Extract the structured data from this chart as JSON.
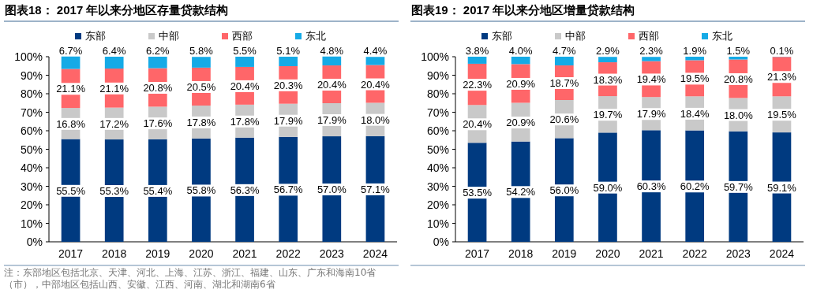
{
  "chart_data": [
    {
      "type": "bar",
      "title": "图表18： 2017 年以来分地区存量贷款结构",
      "categories": [
        "2017",
        "2018",
        "2019",
        "2020",
        "2021",
        "2022",
        "2023",
        "2024"
      ],
      "stacked": true,
      "legend": "top",
      "grid": false,
      "series": [
        {
          "name": "东部",
          "color": "#003a80",
          "values": [
            55.5,
            55.3,
            55.4,
            55.8,
            56.3,
            56.7,
            57.0,
            57.1
          ],
          "value_labels": [
            "55.5%",
            "55.3%",
            "55.4%",
            "55.8%",
            "56.3%",
            "56.7%",
            "57.0%",
            "57.1%"
          ]
        },
        {
          "name": "中部",
          "color": "#c9c9c9",
          "values": [
            16.8,
            17.2,
            17.6,
            17.8,
            17.8,
            17.9,
            17.9,
            18.0
          ],
          "value_labels": [
            "16.8%",
            "17.2%",
            "17.6%",
            "17.8%",
            "17.8%",
            "17.9%",
            "17.9%",
            "18.0%"
          ]
        },
        {
          "name": "西部",
          "color": "#ff6669",
          "values": [
            21.1,
            21.1,
            20.8,
            20.5,
            20.4,
            20.3,
            20.4,
            20.4
          ],
          "value_labels": [
            "21.1%",
            "21.1%",
            "20.8%",
            "20.5%",
            "20.4%",
            "20.3%",
            "20.4%",
            "20.4%"
          ]
        },
        {
          "name": "东北",
          "color": "#15aae6",
          "values": [
            6.7,
            6.4,
            6.2,
            5.8,
            5.5,
            5.1,
            4.8,
            4.4
          ],
          "value_labels": [
            "6.7%",
            "6.4%",
            "6.2%",
            "5.8%",
            "5.5%",
            "5.1%",
            "4.8%",
            "4.4%"
          ]
        }
      ],
      "ylim": [
        0,
        100
      ],
      "yticks": [
        {
          "value": 0,
          "label": "0%"
        },
        {
          "value": 10,
          "label": "10%"
        },
        {
          "value": 20,
          "label": "20%"
        },
        {
          "value": 30,
          "label": "30%"
        },
        {
          "value": 40,
          "label": "40%"
        },
        {
          "value": 50,
          "label": "50%"
        },
        {
          "value": 60,
          "label": "60%"
        },
        {
          "value": 70,
          "label": "70%"
        },
        {
          "value": 80,
          "label": "80%"
        },
        {
          "value": 90,
          "label": "90%"
        },
        {
          "value": 100,
          "label": "100%"
        }
      ],
      "annotations": [
        "注：东部地区包括北京、天津、河北、上海、江苏、浙江、福建、山东、广东和海南10省（市），中部地区包括山西、安徽、江西、河南、湖北和湖南6省"
      ]
    },
    {
      "type": "bar",
      "title": "图表19： 2017 年以来分地区增量贷款结构",
      "categories": [
        "2017",
        "2018",
        "2019",
        "2020",
        "2021",
        "2022",
        "2023",
        "2024"
      ],
      "stacked": true,
      "legend": "top",
      "grid": false,
      "series": [
        {
          "name": "东部",
          "color": "#003a80",
          "values": [
            53.5,
            54.2,
            56.0,
            59.0,
            60.3,
            60.2,
            59.7,
            59.1
          ],
          "value_labels": [
            "53.5%",
            "54.2%",
            "56.0%",
            "59.0%",
            "60.3%",
            "60.2%",
            "59.7%",
            "59.1%"
          ]
        },
        {
          "name": "中部",
          "color": "#c9c9c9",
          "values": [
            20.4,
            20.9,
            20.6,
            19.7,
            17.9,
            18.4,
            18.0,
            19.5
          ],
          "value_labels": [
            "20.4%",
            "20.9%",
            "20.6%",
            "19.7%",
            "17.9%",
            "18.4%",
            "18.0%",
            "19.5%"
          ]
        },
        {
          "name": "西部",
          "color": "#ff6669",
          "values": [
            22.3,
            20.9,
            18.7,
            18.3,
            19.4,
            19.5,
            20.8,
            21.3
          ],
          "value_labels": [
            "22.3%",
            "20.9%",
            "18.7%",
            "18.3%",
            "19.4%",
            "19.5%",
            "20.8%",
            "21.3%"
          ]
        },
        {
          "name": "东北",
          "color": "#15aae6",
          "values": [
            3.8,
            4.0,
            4.7,
            2.9,
            2.3,
            1.9,
            1.5,
            0.1
          ],
          "value_labels": [
            "3.8%",
            "4.0%",
            "4.7%",
            "2.9%",
            "2.3%",
            "1.9%",
            "1.5%",
            "0.1%"
          ]
        }
      ],
      "ylim": [
        0,
        100
      ],
      "yticks": [
        {
          "value": 0,
          "label": "0%"
        },
        {
          "value": 10,
          "label": "10%"
        },
        {
          "value": 20,
          "label": "20%"
        },
        {
          "value": 30,
          "label": "30%"
        },
        {
          "value": 40,
          "label": "40%"
        },
        {
          "value": 50,
          "label": "50%"
        },
        {
          "value": 60,
          "label": "60%"
        },
        {
          "value": 70,
          "label": "70%"
        },
        {
          "value": 80,
          "label": "80%"
        },
        {
          "value": 90,
          "label": "90%"
        },
        {
          "value": 100,
          "label": "100%"
        }
      ]
    }
  ]
}
